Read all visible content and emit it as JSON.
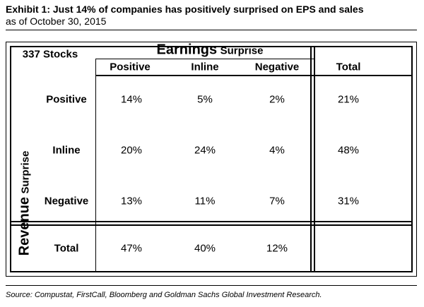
{
  "title": "Exhibit 1: Just 14% of companies has positively surprised on EPS and sales",
  "subtitle": "as of October 30, 2015",
  "source": "Source: Compustat, FirstCall, Bloomberg  and Goldman Sachs Global Investment Research.",
  "chart_data": {
    "type": "table",
    "stock_count": "337 Stocks",
    "column_group": {
      "main": "Earnings",
      "sub": "Surprise"
    },
    "row_group": {
      "main": "Revenue",
      "sub": "Surprise"
    },
    "columns": [
      "Positive",
      "Inline",
      "Negative",
      "Total"
    ],
    "rows": [
      {
        "label": "Positive",
        "values": [
          "14%",
          "5%",
          "2%",
          "21%"
        ]
      },
      {
        "label": "Inline",
        "values": [
          "20%",
          "24%",
          "4%",
          "48%"
        ]
      },
      {
        "label": "Negative",
        "values": [
          "13%",
          "11%",
          "7%",
          "31%"
        ]
      },
      {
        "label": "Total",
        "values": [
          "47%",
          "40%",
          "12%",
          ""
        ]
      }
    ]
  }
}
